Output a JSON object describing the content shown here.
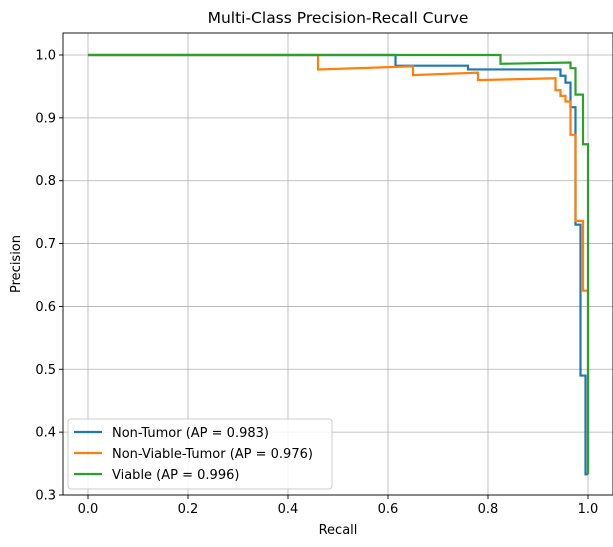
{
  "chart_data": {
    "type": "line",
    "title": "Multi-Class Precision-Recall Curve",
    "xlabel": "Recall",
    "ylabel": "Precision",
    "xlim": [
      -0.05,
      1.05
    ],
    "ylim": [
      0.3,
      1.035
    ],
    "grid": true,
    "legend_position": "lower-left",
    "x_ticks": [
      "0.0",
      "0.2",
      "0.4",
      "0.6",
      "0.8",
      "1.0"
    ],
    "y_ticks": [
      "0.3",
      "0.4",
      "0.5",
      "0.6",
      "0.7",
      "0.8",
      "0.9",
      "1.0"
    ],
    "series": [
      {
        "name": "Non-Tumor (AP = 0.983)",
        "color": "#1f77b4",
        "points": [
          [
            0.0,
            1.0
          ],
          [
            0.615,
            1.0
          ],
          [
            0.615,
            0.983
          ],
          [
            0.76,
            0.983
          ],
          [
            0.76,
            0.977
          ],
          [
            0.945,
            0.977
          ],
          [
            0.945,
            0.967
          ],
          [
            0.955,
            0.967
          ],
          [
            0.955,
            0.956
          ],
          [
            0.965,
            0.956
          ],
          [
            0.965,
            0.917
          ],
          [
            0.975,
            0.917
          ],
          [
            0.975,
            0.73
          ],
          [
            0.985,
            0.73
          ],
          [
            0.985,
            0.49
          ],
          [
            0.995,
            0.49
          ],
          [
            0.995,
            0.333
          ],
          [
            1.0,
            0.333
          ]
        ]
      },
      {
        "name": "Non-Viable-Tumor (AP = 0.976)",
        "color": "#ff7f0e",
        "points": [
          [
            0.0,
            1.0
          ],
          [
            0.46,
            1.0
          ],
          [
            0.46,
            0.977
          ],
          [
            0.65,
            0.982
          ],
          [
            0.65,
            0.968
          ],
          [
            0.78,
            0.972
          ],
          [
            0.78,
            0.96
          ],
          [
            0.935,
            0.963
          ],
          [
            0.935,
            0.944
          ],
          [
            0.945,
            0.944
          ],
          [
            0.945,
            0.935
          ],
          [
            0.955,
            0.935
          ],
          [
            0.955,
            0.926
          ],
          [
            0.965,
            0.926
          ],
          [
            0.965,
            0.873
          ],
          [
            0.975,
            0.873
          ],
          [
            0.975,
            0.736
          ],
          [
            0.99,
            0.736
          ],
          [
            0.99,
            0.625
          ],
          [
            1.0,
            0.625
          ],
          [
            1.0,
            0.333
          ]
        ]
      },
      {
        "name": "Viable (AP = 0.996)",
        "color": "#2ca02c",
        "points": [
          [
            0.0,
            1.0
          ],
          [
            0.825,
            1.0
          ],
          [
            0.825,
            0.986
          ],
          [
            0.965,
            0.988
          ],
          [
            0.965,
            0.979
          ],
          [
            0.975,
            0.979
          ],
          [
            0.975,
            0.937
          ],
          [
            0.99,
            0.937
          ],
          [
            0.99,
            0.858
          ],
          [
            1.0,
            0.858
          ],
          [
            1.0,
            0.333
          ]
        ]
      }
    ]
  }
}
